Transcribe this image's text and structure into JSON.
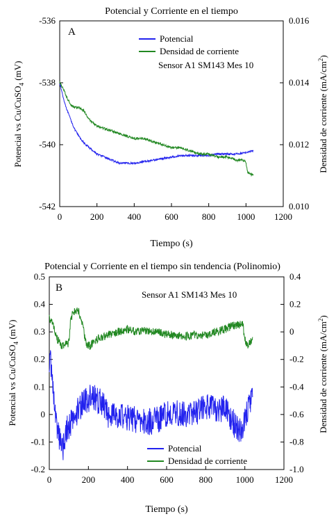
{
  "chart_data": [
    {
      "type": "line",
      "panel_label": "A",
      "title": "Potencial y Corriente en el tiempo",
      "annotation": "Sensor A1 SM143 Mes 10",
      "xlabel": "Tiempo (s)",
      "ylabel_left_parts": [
        "Potencial vs Cu/CuSO",
        "4",
        " (mV)"
      ],
      "ylabel_right_parts": [
        "Densidad de corriente (mA/cm",
        "2",
        ")"
      ],
      "xlim": [
        0,
        1200
      ],
      "ylim_left": [
        -542,
        -536
      ],
      "ylim_right": [
        0.01,
        0.016
      ],
      "x_ticks": [
        "0",
        "200",
        "400",
        "600",
        "800",
        "1000",
        "1200"
      ],
      "y_ticks_left": [
        "-536",
        "-538",
        "-540",
        "-542"
      ],
      "y_ticks_right": [
        "0.016",
        "0.014",
        "0.012",
        "0.010"
      ],
      "legend_position": "top-right",
      "series": [
        {
          "name": "Potencial",
          "axis": "left",
          "color": "#2222ee",
          "noise": 0.03,
          "x": [
            0,
            20,
            40,
            60,
            80,
            100,
            130,
            160,
            200,
            240,
            280,
            320,
            360,
            400,
            450,
            500,
            550,
            600,
            650,
            700,
            750,
            800,
            850,
            900,
            950,
            1000,
            1040
          ],
          "y": [
            -538.0,
            -538.5,
            -538.9,
            -539.2,
            -539.5,
            -539.7,
            -539.95,
            -540.1,
            -540.3,
            -540.4,
            -540.5,
            -540.6,
            -540.6,
            -540.6,
            -540.55,
            -540.5,
            -540.45,
            -540.4,
            -540.35,
            -540.35,
            -540.35,
            -540.35,
            -540.3,
            -540.3,
            -540.3,
            -540.25,
            -540.2
          ]
        },
        {
          "name": "Densidad de corriente",
          "axis": "right",
          "color": "#228822",
          "noise": 4e-05,
          "x": [
            0,
            20,
            40,
            60,
            80,
            100,
            130,
            160,
            200,
            250,
            300,
            350,
            400,
            450,
            500,
            550,
            600,
            650,
            700,
            750,
            800,
            850,
            900,
            950,
            990,
            1000,
            1010,
            1040
          ],
          "y": [
            0.014,
            0.0138,
            0.0135,
            0.0133,
            0.0132,
            0.0132,
            0.0131,
            0.0128,
            0.0126,
            0.0125,
            0.0124,
            0.0123,
            0.0122,
            0.0122,
            0.0121,
            0.012,
            0.0119,
            0.0119,
            0.0118,
            0.0117,
            0.0117,
            0.0116,
            0.0116,
            0.0115,
            0.0115,
            0.0114,
            0.0111,
            0.011
          ]
        }
      ]
    },
    {
      "type": "line",
      "panel_label": "B",
      "title": "Potencial y Corriente en el tiempo sin tendencia (Polinomio)",
      "annotation": "Sensor A1 SM143 Mes 10",
      "xlabel": "Tiempo (s)",
      "ylabel_left_parts": [
        "Potencial vs Cu/CuSO",
        "4",
        " (mV)"
      ],
      "ylabel_right_parts": [
        "Densidad de corriente  (mA/cm",
        "2",
        ")"
      ],
      "xlim": [
        0,
        1200
      ],
      "ylim_left": [
        -0.2,
        0.5
      ],
      "ylim_right": [
        -1.0,
        0.4
      ],
      "x_ticks": [
        "0",
        "200",
        "400",
        "600",
        "800",
        "1000",
        "1200"
      ],
      "y_ticks_left": [
        "0.5",
        "0.4",
        "0.3",
        "0.2",
        "0.1",
        "0",
        "-0.1",
        "-0.2"
      ],
      "y_ticks_right": [
        "0.4",
        "0.2",
        "0",
        "-0.2",
        "-0.4",
        "-0.6",
        "-0.8",
        "-1.0"
      ],
      "legend_position": "bottom-right",
      "series": [
        {
          "name": "Potencial",
          "axis": "left",
          "color": "#2222ee",
          "noise": 0.05,
          "x": [
            0,
            10,
            30,
            50,
            70,
            90,
            120,
            150,
            180,
            210,
            240,
            270,
            300,
            350,
            400,
            450,
            500,
            550,
            600,
            650,
            700,
            750,
            800,
            850,
            900,
            950,
            980,
            1000,
            1020,
            1040
          ],
          "y": [
            0.2,
            0.18,
            0.0,
            -0.08,
            -0.12,
            -0.05,
            -0.02,
            0.02,
            0.05,
            0.06,
            0.06,
            0.04,
            0.0,
            0.0,
            -0.01,
            -0.02,
            -0.03,
            -0.02,
            0.0,
            0.01,
            0.0,
            0.01,
            0.03,
            0.02,
            0.02,
            -0.04,
            -0.06,
            -0.02,
            0.02,
            0.06
          ]
        },
        {
          "name": "Densidad de corriente",
          "axis": "right",
          "color": "#228822",
          "noise": 0.03,
          "x": [
            0,
            20,
            40,
            60,
            80,
            100,
            110,
            130,
            150,
            170,
            190,
            210,
            250,
            300,
            350,
            400,
            450,
            500,
            550,
            600,
            650,
            700,
            750,
            800,
            850,
            900,
            950,
            990,
            1000,
            1010,
            1040
          ],
          "y": [
            0.1,
            0.05,
            -0.05,
            -0.1,
            -0.1,
            -0.08,
            0.1,
            0.15,
            0.15,
            0.05,
            -0.1,
            -0.1,
            -0.05,
            -0.02,
            0.0,
            0.02,
            0.0,
            0.01,
            0.0,
            -0.02,
            -0.02,
            -0.03,
            -0.02,
            -0.02,
            0.0,
            0.02,
            0.05,
            0.05,
            -0.05,
            -0.1,
            -0.05
          ]
        }
      ]
    }
  ]
}
